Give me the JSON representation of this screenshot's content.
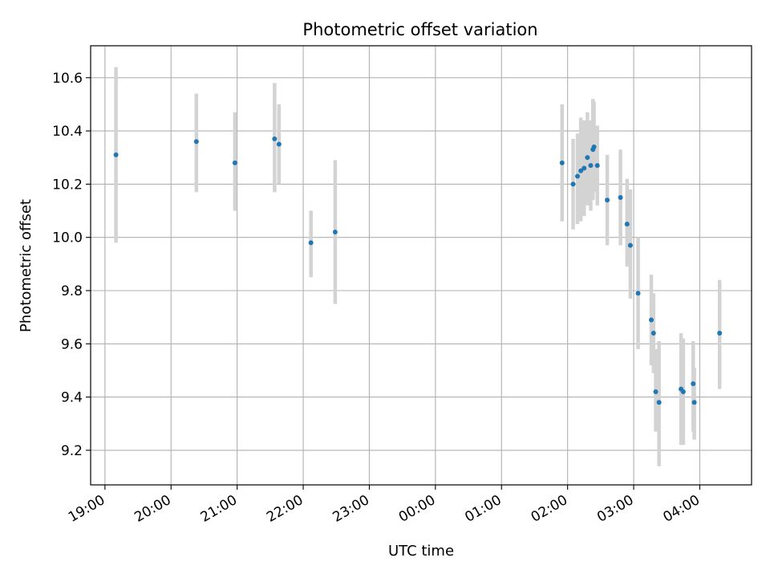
{
  "chart_data": {
    "type": "scatter",
    "title": "Photometric offset variation",
    "xlabel": "UTC time",
    "ylabel": "Photometric offset",
    "x_axis_type": "time",
    "xlim": [
      "18:47",
      "04:47"
    ],
    "ylim": [
      9.07,
      10.72
    ],
    "grid": true,
    "legend": "none",
    "colors": {
      "points": "#1f77b4",
      "errorbars": "#d3d3d3",
      "grid": "#b0b0b0"
    },
    "x_ticks": [
      "19:00",
      "20:00",
      "21:00",
      "22:00",
      "23:00",
      "00:00",
      "01:00",
      "02:00",
      "03:00",
      "04:00"
    ],
    "y_ticks": [
      "9.2",
      "9.4",
      "9.6",
      "9.8",
      "10.0",
      "10.2",
      "10.4",
      "10.6"
    ],
    "series": [
      {
        "points": [
          {
            "x": "19:10",
            "y": 10.31,
            "ylow": 9.98,
            "yhigh": 10.64
          },
          {
            "x": "20:23",
            "y": 10.36,
            "ylow": 10.17,
            "yhigh": 10.54
          },
          {
            "x": "20:58",
            "y": 10.28,
            "ylow": 10.1,
            "yhigh": 10.47
          },
          {
            "x": "21:34",
            "y": 10.37,
            "ylow": 10.17,
            "yhigh": 10.58
          },
          {
            "x": "21:38",
            "y": 10.35,
            "ylow": 10.2,
            "yhigh": 10.5
          },
          {
            "x": "22:07",
            "y": 9.98,
            "ylow": 9.85,
            "yhigh": 10.1
          },
          {
            "x": "22:29",
            "y": 10.02,
            "ylow": 9.75,
            "yhigh": 10.29
          },
          {
            "x": "01:55",
            "y": 10.28,
            "ylow": 10.06,
            "yhigh": 10.5
          },
          {
            "x": "02:05",
            "y": 10.2,
            "ylow": 10.03,
            "yhigh": 10.37
          },
          {
            "x": "02:09",
            "y": 10.23,
            "ylow": 10.05,
            "yhigh": 10.39
          },
          {
            "x": "02:12",
            "y": 10.25,
            "ylow": 10.06,
            "yhigh": 10.45
          },
          {
            "x": "02:15",
            "y": 10.26,
            "ylow": 10.08,
            "yhigh": 10.44
          },
          {
            "x": "02:18",
            "y": 10.3,
            "ylow": 10.12,
            "yhigh": 10.47
          },
          {
            "x": "02:21",
            "y": 10.27,
            "ylow": 10.1,
            "yhigh": 10.44
          },
          {
            "x": "02:23",
            "y": 10.33,
            "ylow": 10.14,
            "yhigh": 10.52
          },
          {
            "x": "02:24",
            "y": 10.34,
            "ylow": 10.17,
            "yhigh": 10.51
          },
          {
            "x": "02:27",
            "y": 10.27,
            "ylow": 10.12,
            "yhigh": 10.42
          },
          {
            "x": "02:36",
            "y": 10.14,
            "ylow": 9.97,
            "yhigh": 10.31
          },
          {
            "x": "02:48",
            "y": 10.15,
            "ylow": 9.97,
            "yhigh": 10.33
          },
          {
            "x": "02:54",
            "y": 10.05,
            "ylow": 9.89,
            "yhigh": 10.22
          },
          {
            "x": "02:57",
            "y": 9.97,
            "ylow": 9.77,
            "yhigh": 10.18
          },
          {
            "x": "03:04",
            "y": 9.79,
            "ylow": 9.58,
            "yhigh": 10.0
          },
          {
            "x": "03:16",
            "y": 9.69,
            "ylow": 9.52,
            "yhigh": 9.86
          },
          {
            "x": "03:18",
            "y": 9.64,
            "ylow": 9.49,
            "yhigh": 9.79
          },
          {
            "x": "03:20",
            "y": 9.42,
            "ylow": 9.27,
            "yhigh": 9.58
          },
          {
            "x": "03:23",
            "y": 9.38,
            "ylow": 9.14,
            "yhigh": 9.61
          },
          {
            "x": "03:43",
            "y": 9.43,
            "ylow": 9.22,
            "yhigh": 9.64
          },
          {
            "x": "03:45",
            "y": 9.42,
            "ylow": 9.22,
            "yhigh": 9.62
          },
          {
            "x": "03:54",
            "y": 9.45,
            "ylow": 9.27,
            "yhigh": 9.61
          },
          {
            "x": "03:55",
            "y": 9.38,
            "ylow": 9.24,
            "yhigh": 9.51
          },
          {
            "x": "04:18",
            "y": 9.64,
            "ylow": 9.43,
            "yhigh": 9.84
          }
        ]
      }
    ]
  }
}
